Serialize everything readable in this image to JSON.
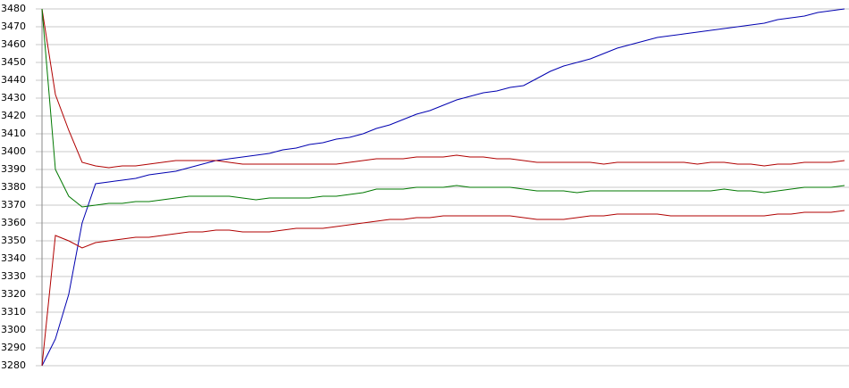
{
  "chart_data": {
    "type": "line",
    "categories": [
      null,
      null,
      null,
      null,
      null,
      null,
      null,
      null,
      null,
      null,
      null,
      null,
      null,
      null,
      null,
      null,
      null,
      null,
      null,
      null,
      null,
      null,
      null,
      null,
      null,
      null,
      null,
      null,
      null,
      null,
      null,
      null,
      null,
      null,
      null,
      null,
      null,
      null,
      null,
      null,
      null,
      null,
      null,
      null,
      null,
      null,
      null,
      null,
      null,
      null,
      null,
      null,
      null,
      null,
      null,
      null,
      null,
      null,
      null,
      null,
      null
    ],
    "series": [
      {
        "color": "#0000b0",
        "values": [
          3280,
          3295,
          3320,
          3360,
          3382,
          3383,
          3384,
          3385,
          3387,
          3388,
          3389,
          3391,
          3393,
          3395,
          3396,
          3397,
          3398,
          3399,
          3401,
          3402,
          3404,
          3405,
          3407,
          3408,
          3410,
          3413,
          3415,
          3418,
          3421,
          3423,
          3426,
          3429,
          3431,
          3433,
          3434,
          3436,
          3437,
          3441,
          3445,
          3448,
          3450,
          3452,
          3455,
          3458,
          3460,
          3462,
          3464,
          3465,
          3466,
          3467,
          3468,
          3469,
          3470,
          3471,
          3472,
          3474,
          3475,
          3476,
          3478,
          3479,
          3480
        ]
      },
      {
        "color": "#b00000",
        "values": [
          3480,
          3432,
          3412,
          3394,
          3392,
          3391,
          3392,
          3392,
          3393,
          3394,
          3395,
          3395,
          3395,
          3395,
          3394,
          3393,
          3393,
          3393,
          3393,
          3393,
          3393,
          3393,
          3393,
          3394,
          3395,
          3396,
          3396,
          3396,
          3397,
          3397,
          3397,
          3398,
          3397,
          3397,
          3396,
          3396,
          3395,
          3394,
          3394,
          3394,
          3394,
          3394,
          3393,
          3394,
          3394,
          3394,
          3394,
          3394,
          3394,
          3393,
          3394,
          3394,
          3393,
          3393,
          3392,
          3393,
          3393,
          3394,
          3394,
          3394,
          3395
        ]
      },
      {
        "color": "#007800",
        "values": [
          3480,
          3390,
          3375,
          3369,
          3370,
          3371,
          3371,
          3372,
          3372,
          3373,
          3374,
          3375,
          3375,
          3375,
          3375,
          3374,
          3373,
          3374,
          3374,
          3374,
          3374,
          3375,
          3375,
          3376,
          3377,
          3379,
          3379,
          3379,
          3380,
          3380,
          3380,
          3381,
          3380,
          3380,
          3380,
          3380,
          3379,
          3378,
          3378,
          3378,
          3377,
          3378,
          3378,
          3378,
          3378,
          3378,
          3378,
          3378,
          3378,
          3378,
          3378,
          3379,
          3378,
          3378,
          3377,
          3378,
          3379,
          3380,
          3380,
          3380,
          3381
        ]
      },
      {
        "color": "#b00000",
        "values": [
          3280,
          3353,
          3350,
          3346,
          3349,
          3350,
          3351,
          3352,
          3352,
          3353,
          3354,
          3355,
          3355,
          3356,
          3356,
          3355,
          3355,
          3355,
          3356,
          3357,
          3357,
          3357,
          3358,
          3359,
          3360,
          3361,
          3362,
          3362,
          3363,
          3363,
          3364,
          3364,
          3364,
          3364,
          3364,
          3364,
          3363,
          3362,
          3362,
          3362,
          3363,
          3364,
          3364,
          3365,
          3365,
          3365,
          3365,
          3364,
          3364,
          3364,
          3364,
          3364,
          3364,
          3364,
          3364,
          3365,
          3365,
          3366,
          3366,
          3366,
          3367
        ]
      }
    ],
    "ylim": [
      3280,
      3480
    ],
    "yticks": [
      3280,
      3290,
      3300,
      3310,
      3320,
      3330,
      3340,
      3350,
      3360,
      3370,
      3380,
      3390,
      3400,
      3410,
      3420,
      3430,
      3440,
      3450,
      3460,
      3470,
      3480
    ],
    "grid": true
  }
}
